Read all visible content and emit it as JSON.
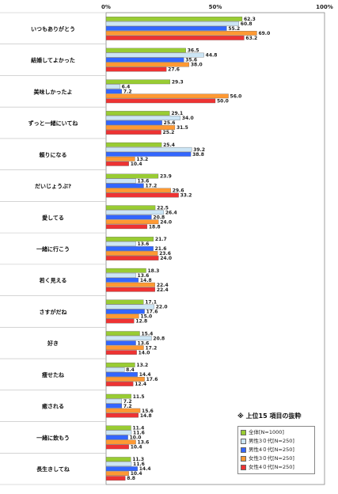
{
  "chart_data": {
    "type": "bar",
    "orientation": "horizontal",
    "x_ticks": [
      "0%",
      "50%",
      "100%"
    ],
    "xlim": [
      0,
      100
    ],
    "grid": false,
    "note": "※ 上位15 項目の抜粋",
    "legend_position": "bottom-right",
    "categories": [
      "いつもありがとう",
      "結婚してよかった",
      "美味しかったよ",
      "ずっと一緒にいてね",
      "頼りになる",
      "だいじょうぶ?",
      "愛してる",
      "一緒に行こう",
      "若く見える",
      "さすがだね",
      "好き",
      "痩せたね",
      "癒される",
      "一緒に飲もう",
      "長生きしてね"
    ],
    "series": [
      {
        "name": "全体[N=1000]",
        "color": "#99cc33",
        "values": [
          62.3,
          36.5,
          29.3,
          29.1,
          25.4,
          23.9,
          22.5,
          21.7,
          18.3,
          17.1,
          15.4,
          13.2,
          11.5,
          11.4,
          11.3
        ]
      },
      {
        "name": "男性3０代[N=250]",
        "color": "#cce5f5",
        "values": [
          60.8,
          44.8,
          6.4,
          34.0,
          39.2,
          13.6,
          26.4,
          13.6,
          13.6,
          22.0,
          20.8,
          8.4,
          7.2,
          11.6,
          11.6
        ]
      },
      {
        "name": "男性4０代[N=250]",
        "color": "#3366ff",
        "values": [
          55.2,
          35.6,
          7.2,
          25.6,
          38.8,
          17.2,
          20.8,
          21.6,
          14.8,
          17.6,
          13.6,
          14.4,
          7.2,
          10.0,
          14.4
        ]
      },
      {
        "name": "女性3０代[N=250]",
        "color": "#ff9933",
        "values": [
          69.0,
          38.0,
          56.0,
          31.5,
          13.2,
          29.6,
          24.0,
          23.6,
          22.4,
          15.0,
          17.2,
          17.6,
          15.6,
          13.6,
          10.4
        ]
      },
      {
        "name": "女性4０代[N=250]",
        "color": "#ee3333",
        "values": [
          63.2,
          27.6,
          50.0,
          25.2,
          10.4,
          33.2,
          18.8,
          24.0,
          22.4,
          12.8,
          14.0,
          12.4,
          14.8,
          10.4,
          8.8
        ]
      }
    ]
  }
}
